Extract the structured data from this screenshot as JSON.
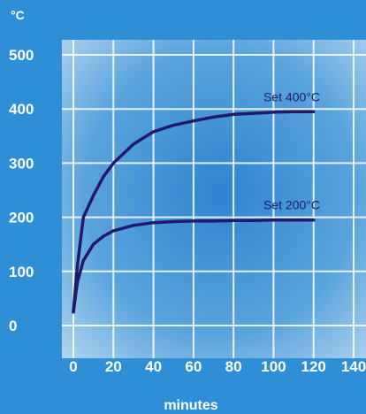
{
  "chart_data": {
    "type": "line",
    "ylabel": "°C",
    "xlabel": "minutes",
    "xlim": [
      0,
      140
    ],
    "ylim": [
      0,
      500
    ],
    "x_ticks": [
      "0",
      "20",
      "40",
      "60",
      "80",
      "100",
      "120",
      "140"
    ],
    "y_ticks": [
      "0",
      "100",
      "200",
      "300",
      "400",
      "500"
    ],
    "grid": true,
    "series": [
      {
        "name": "Set 400°C",
        "x": [
          0,
          2,
          5,
          10,
          15,
          20,
          30,
          40,
          50,
          60,
          70,
          80,
          90,
          100,
          110,
          120
        ],
        "y": [
          25,
          110,
          200,
          240,
          275,
          300,
          335,
          358,
          370,
          378,
          385,
          390,
          392,
          394,
          395,
          395
        ]
      },
      {
        "name": "Set 200°C",
        "x": [
          0,
          2,
          5,
          10,
          15,
          20,
          30,
          40,
          50,
          60,
          70,
          80,
          90,
          100,
          110,
          120
        ],
        "y": [
          25,
          80,
          120,
          150,
          165,
          175,
          185,
          190,
          192,
          193,
          193,
          194,
          194,
          195,
          195,
          195
        ]
      }
    ]
  },
  "colors": {
    "background": "#2f8fd6",
    "plot_background": "#a9cdea",
    "grid": "#ffffff",
    "line": "#1f1a6b",
    "text": "#ffffff"
  }
}
